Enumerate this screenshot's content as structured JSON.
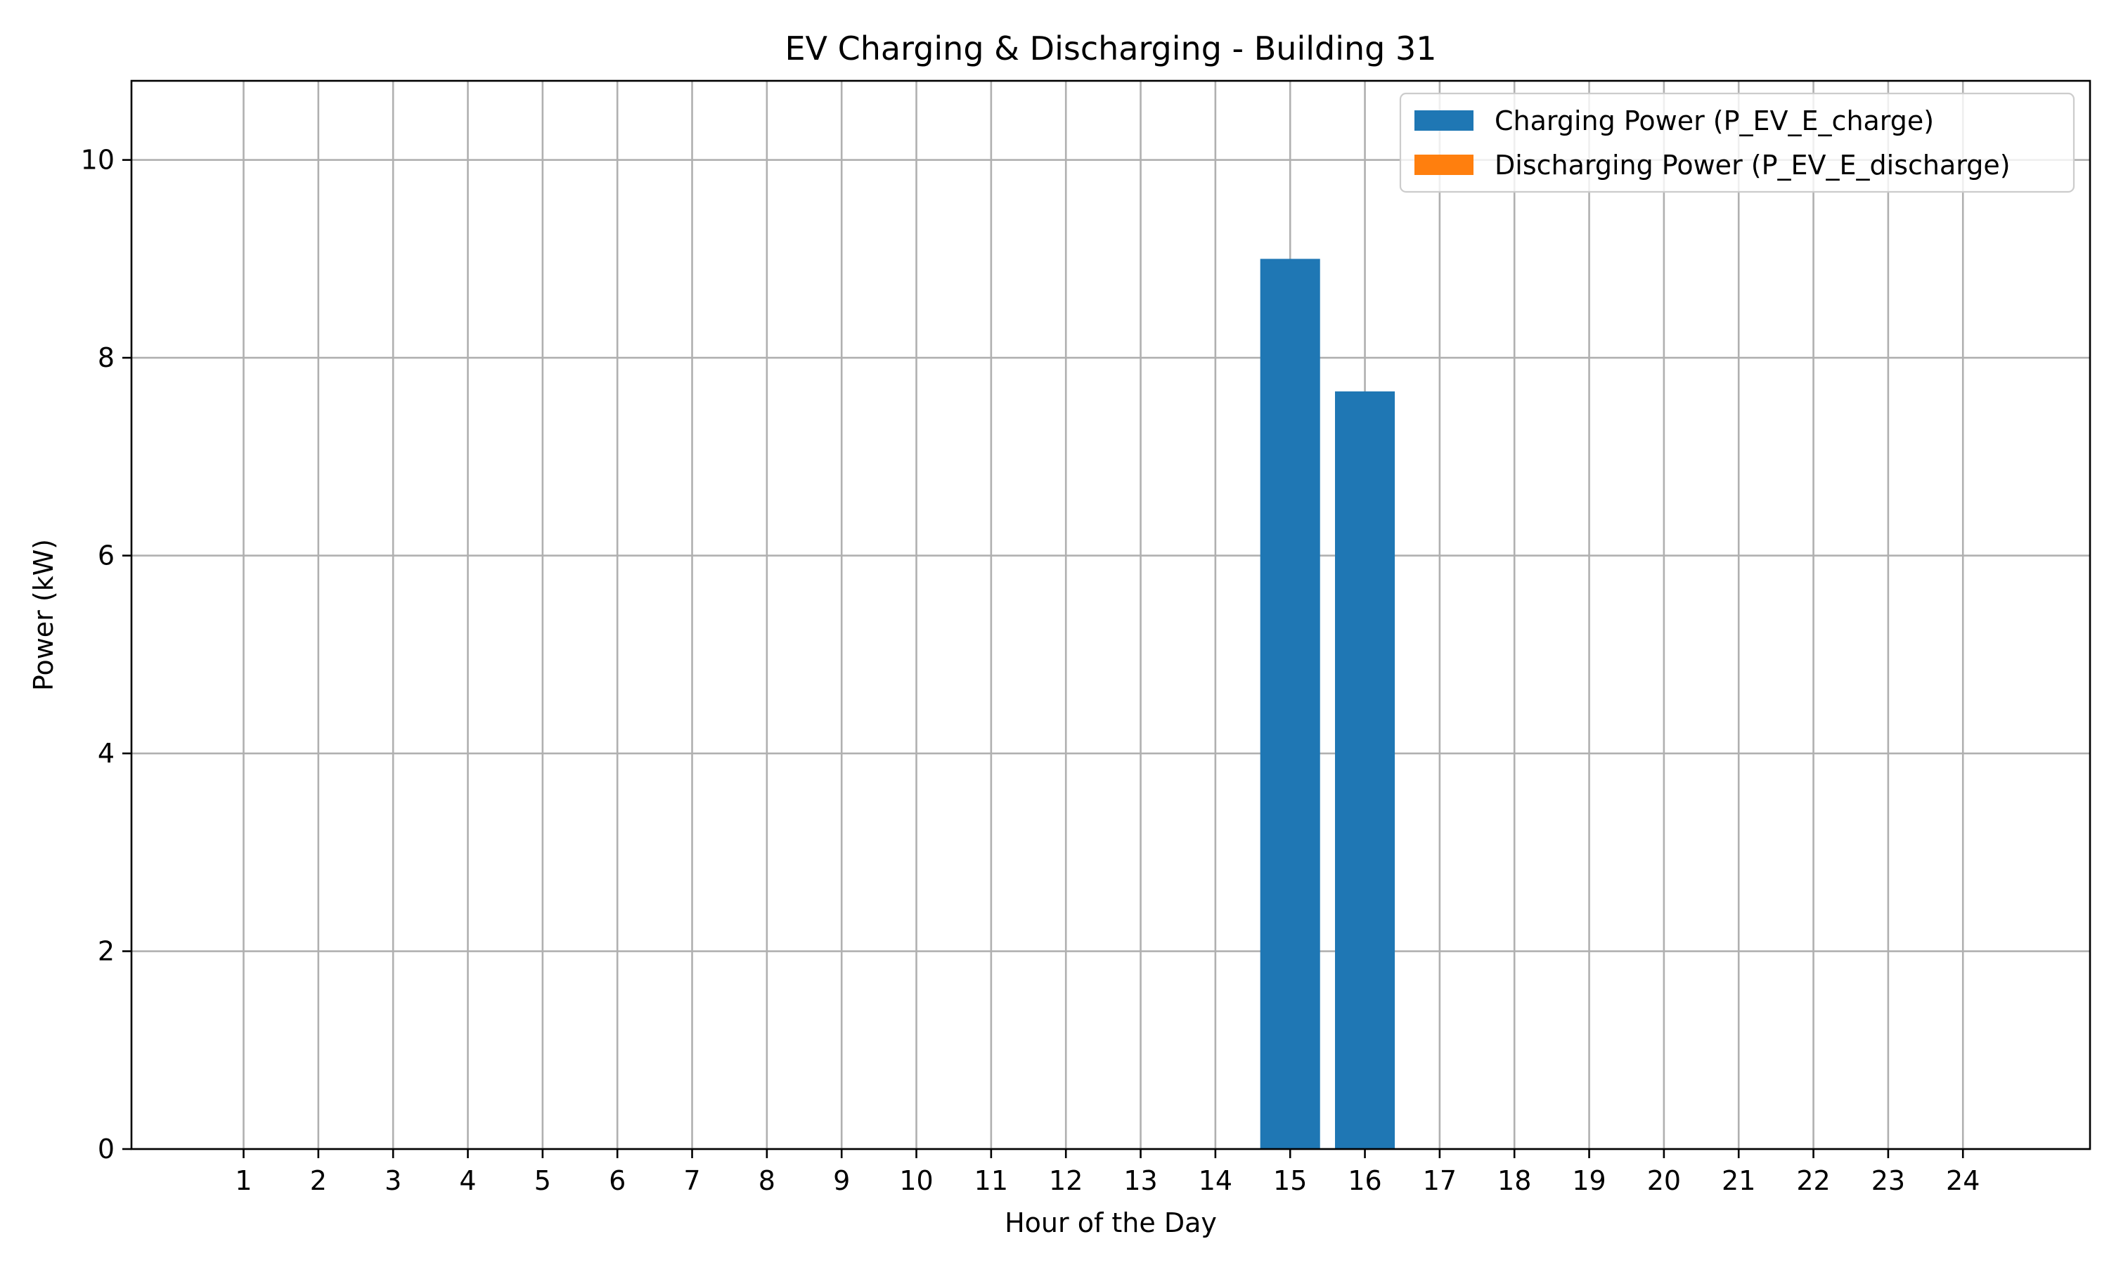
{
  "chart_data": {
    "type": "bar",
    "title": "EV Charging & Discharging - Building 31",
    "xlabel": "Hour of the Day",
    "ylabel": "Power (kW)",
    "categories": [
      "1",
      "2",
      "3",
      "4",
      "5",
      "6",
      "7",
      "8",
      "9",
      "10",
      "11",
      "12",
      "13",
      "14",
      "15",
      "16",
      "17",
      "18",
      "19",
      "20",
      "21",
      "22",
      "23",
      "24"
    ],
    "x": [
      1,
      2,
      3,
      4,
      5,
      6,
      7,
      8,
      9,
      10,
      11,
      12,
      13,
      14,
      15,
      16,
      17,
      18,
      19,
      20,
      21,
      22,
      23,
      24
    ],
    "xlim": [
      -0.5,
      25.7
    ],
    "ylim": [
      0,
      10.8
    ],
    "yticks": [
      0,
      2,
      4,
      6,
      8,
      10
    ],
    "grid": true,
    "legend_position": "top-right",
    "series": [
      {
        "name": "Charging Power (P_EV_E_charge)",
        "color": "#1f77b4",
        "values": [
          0,
          0,
          0,
          0,
          0,
          0,
          0,
          0,
          0,
          0,
          0,
          0,
          0,
          0,
          9.0,
          7.66,
          0,
          0,
          0,
          0,
          0,
          0,
          0,
          0
        ]
      },
      {
        "name": "Discharging Power (P_EV_E_discharge)",
        "color": "#ff7f0e",
        "values": [
          0,
          0,
          0,
          0,
          0,
          0,
          0,
          0,
          0,
          0,
          0,
          0,
          0,
          0,
          0,
          0,
          0,
          0,
          0,
          0,
          0,
          0,
          0,
          0
        ]
      }
    ]
  }
}
